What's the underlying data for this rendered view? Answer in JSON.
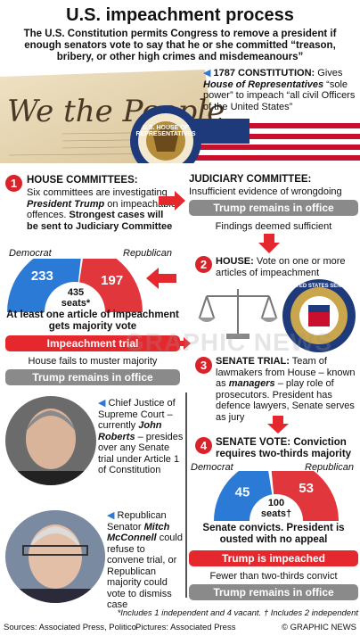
{
  "title": "U.S. impeachment process",
  "subtitle": "The U.S. Constitution permits Congress to remove a president if enough senators vote to say that he or she committed “treason, bribery, or other high crimes and misdemeanours”",
  "constitution": {
    "heading": "1787 CONSTITUTION:",
    "text_a": "Gives",
    "emph": "House of Representatives",
    "text_b": "“sole power” to impeach “all civil Officers of the United States”",
    "parchment_text": "We the People",
    "house_seal_text": "U.S. HOUSE OF REPRESENTATIVES"
  },
  "step1": {
    "num": "1",
    "heading": "HOUSE COMMITTEES:",
    "text_a": "Six committees are investigating",
    "emph": "President Trump",
    "text_b": "on impeachable offences.",
    "strong": "Strongest cases will be sent to Judiciary Committee"
  },
  "judiciary": {
    "heading": "JUDICIARY COMMITTEE:",
    "text": "Insufficient evidence of wrongdoing",
    "box": "Trump remains in office",
    "below": "Findings deemed sufficient"
  },
  "house_chart": {
    "dem_label": "Democrat",
    "rep_label": "Republican",
    "dem_value": "233",
    "rep_value": "197",
    "total_value": "435",
    "total_label": "seats*",
    "caption": "At least one article of impeachment gets majority vote",
    "box_red": "Impeachment trial",
    "fail_text": "House fails to muster majority",
    "box_grey": "Trump remains in office"
  },
  "step2": {
    "num": "2",
    "heading": "HOUSE:",
    "text": "Vote on one or more articles of impeachment",
    "senate_seal_text": "UNITED STATES SENATE"
  },
  "step3": {
    "num": "3",
    "heading": "SENATE TRIAL:",
    "text_a": "Team of lawmakers from House – known as",
    "emph": "managers",
    "text_b": "– play role of prosecutors. President has defence lawyers, Senate serves as jury"
  },
  "roberts": {
    "text_a": "Chief Justice of Supreme Court – currently",
    "emph": "John Roberts",
    "text_b": "– presides over any Senate trial under Article 1 of Constitution"
  },
  "mcconnell": {
    "text_a": "Republican Senator",
    "emph": "Mitch McConnell",
    "text_b": "could refuse to convene trial, or Republican majority could vote to dismiss case"
  },
  "step4": {
    "num": "4",
    "heading": "SENATE VOTE: Conviction requires two-thirds majority",
    "dem_label": "Democrat",
    "rep_label": "Republican",
    "dem_value": "45",
    "rep_value": "53",
    "total_value": "100",
    "total_label": "seats†",
    "caption": "Senate convicts. President is ousted with no appeal",
    "box_red": "Trump is impeached",
    "fail_text": "Fewer than two-thirds convict",
    "box_grey": "Trump remains in office"
  },
  "footnote": "*Includes 1 independent and 4 vacant. † Includes 2 independent",
  "sources": "Sources: Associated Press, Politico",
  "pictures": "Pictures: Associated Press",
  "credit": "© GRAPHIC NEWS",
  "watermark": "GRAPHIC NEWS",
  "colors": {
    "dem": "#2b7bd6",
    "rep": "#e0363c",
    "red": "#e4282e",
    "grey": "#8a8a8a",
    "accent": "#d8232a"
  },
  "chart_data": [
    {
      "type": "pie",
      "title": "",
      "categories": [
        "Democrat",
        "Republican"
      ],
      "values": [
        233,
        197
      ],
      "total": 435
    },
    {
      "type": "pie",
      "title": "",
      "categories": [
        "Democrat",
        "Republican"
      ],
      "values": [
        45,
        53
      ],
      "total": 100
    }
  ]
}
